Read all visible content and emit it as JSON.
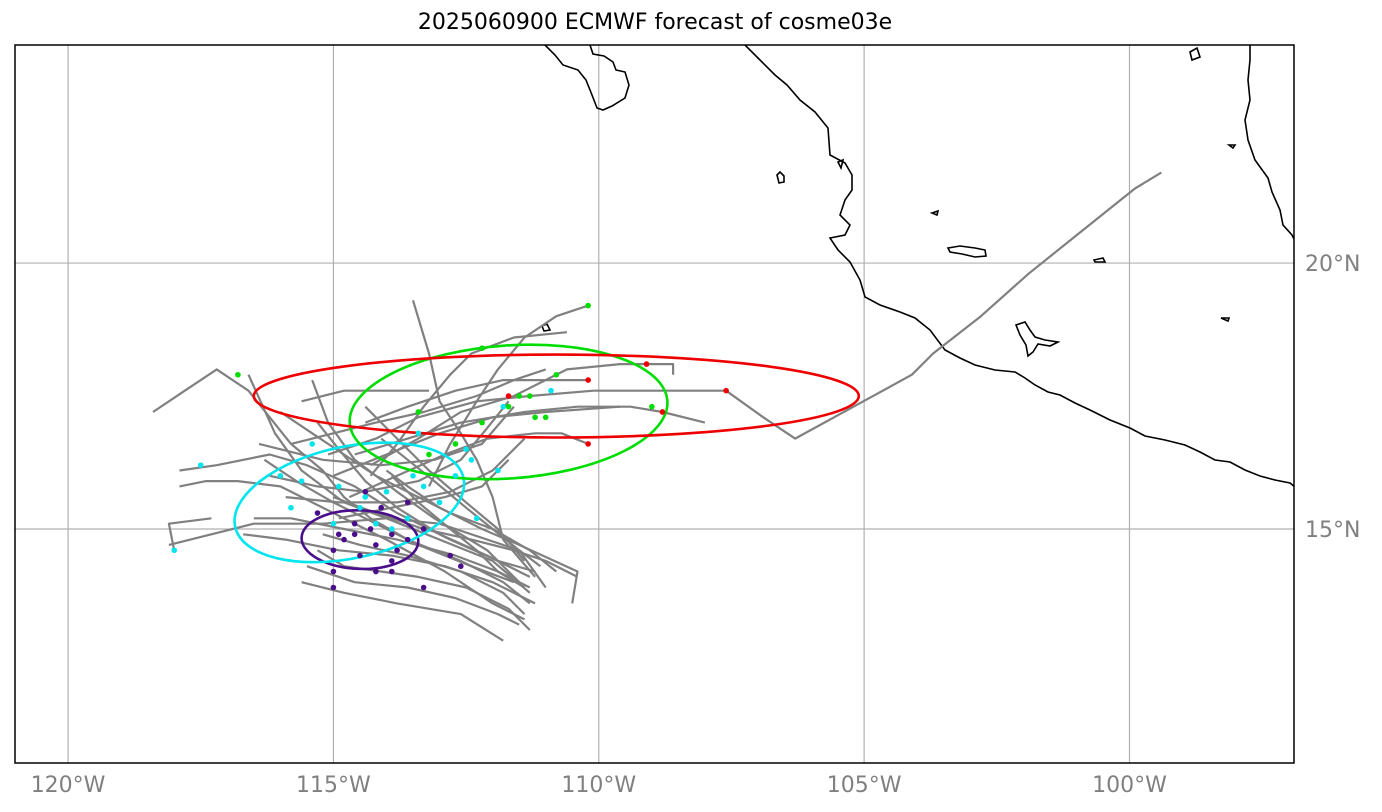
{
  "title": "2025060900 ECMWF forecast of cosme03e",
  "map": {
    "extent": {
      "lon_min": -121,
      "lon_max": -96.9,
      "lat_min": 10.6,
      "lat_max": 24.1
    },
    "projection": "PlateCarree",
    "gridlines": true,
    "colors": {
      "grid": "#b0b0b0",
      "coast": "#000000",
      "track": "#808080",
      "tick": "#808080"
    }
  },
  "axes": {
    "x_ticks": [
      {
        "lon": -120,
        "label": "120°W"
      },
      {
        "lon": -115,
        "label": "115°W"
      },
      {
        "lon": -110,
        "label": "110°W"
      },
      {
        "lon": -105,
        "label": "105°W"
      },
      {
        "lon": -100,
        "label": "100°W"
      }
    ],
    "y_ticks": [
      {
        "lat": 15,
        "label": "15°N"
      },
      {
        "lat": 20,
        "label": "20°N"
      }
    ]
  },
  "ellipses": [
    {
      "name": "purple",
      "color": "#4b0e8a",
      "center": [
        -114.5,
        14.8
      ],
      "semi_axes": [
        1.1,
        0.55
      ],
      "angle": -2
    },
    {
      "name": "cyan",
      "color": "#00e5ee",
      "center": [
        -114.7,
        15.5
      ],
      "semi_axes": [
        2.2,
        1.05
      ],
      "angle": 12
    },
    {
      "name": "green",
      "color": "#00dd00",
      "center": [
        -111.7,
        17.2
      ],
      "semi_axes": [
        3.0,
        1.25
      ],
      "angle": 4
    },
    {
      "name": "red",
      "color": "#ee0000",
      "center": [
        -110.8,
        17.5
      ],
      "semi_axes": [
        5.7,
        0.78
      ],
      "angle": 0
    }
  ],
  "points": {
    "purple": [
      [
        -115,
        14.2
      ],
      [
        -115,
        14.6
      ],
      [
        -114.8,
        14.8
      ],
      [
        -114.5,
        14.5
      ],
      [
        -114.2,
        14.7
      ],
      [
        -113.9,
        14.4
      ],
      [
        -113.8,
        14.6
      ],
      [
        -113.6,
        14.8
      ],
      [
        -114.3,
        15
      ],
      [
        -114.6,
        15.1
      ],
      [
        -115.3,
        15.3
      ],
      [
        -114.1,
        15.4
      ],
      [
        -113.6,
        15.5
      ],
      [
        -113.3,
        15
      ],
      [
        -112.8,
        14.5
      ],
      [
        -112.6,
        14.3
      ],
      [
        -113.3,
        13.9
      ],
      [
        -115,
        13.9
      ],
      [
        -114.2,
        14.2
      ],
      [
        -113.9,
        14.9
      ],
      [
        -114.9,
        14.9
      ],
      [
        -114.4,
        15.7
      ],
      [
        -113.9,
        14.2
      ],
      [
        -114.6,
        14.9
      ]
    ],
    "cyan": [
      [
        -118,
        14.6
      ],
      [
        -117.5,
        16.2
      ],
      [
        -116,
        16
      ],
      [
        -115.4,
        16.6
      ],
      [
        -115.6,
        15.9
      ],
      [
        -114.9,
        15.8
      ],
      [
        -114.4,
        15.6
      ],
      [
        -114,
        15.7
      ],
      [
        -113.5,
        16
      ],
      [
        -113.3,
        15.8
      ],
      [
        -112.7,
        16
      ],
      [
        -112.4,
        16.3
      ],
      [
        -112.3,
        15.2
      ],
      [
        -113,
        15.5
      ],
      [
        -114.5,
        15.4
      ],
      [
        -115,
        15.1
      ],
      [
        -114.2,
        15.1
      ],
      [
        -113.9,
        15
      ],
      [
        -113.6,
        15.2
      ],
      [
        -115.8,
        15.4
      ],
      [
        -111.9,
        16.1
      ],
      [
        -113.4,
        16.8
      ],
      [
        -112.5,
        16.5
      ],
      [
        -111.8,
        17.3
      ],
      [
        -110.9,
        17.6
      ]
    ],
    "green": [
      [
        -116.8,
        17.9
      ],
      [
        -113.4,
        17.2
      ],
      [
        -112.2,
        18.4
      ],
      [
        -110.8,
        17.9
      ],
      [
        -110.2,
        19.2
      ],
      [
        -111.5,
        17.5
      ],
      [
        -111.7,
        17.3
      ],
      [
        -111.3,
        17.5
      ],
      [
        -111,
        17.1
      ],
      [
        -111.2,
        17.1
      ],
      [
        -109.0,
        17.3
      ],
      [
        -112.2,
        17.0
      ],
      [
        -113.2,
        16.4
      ],
      [
        -112.7,
        16.6
      ]
    ],
    "red": [
      [
        -111.7,
        17.5
      ],
      [
        -110.2,
        17.8
      ],
      [
        -109.1,
        18.1
      ],
      [
        -108.8,
        17.2
      ],
      [
        -107.6,
        17.6
      ],
      [
        -110.2,
        16.6
      ]
    ]
  },
  "tracks": [
    [
      [
        -118.4,
        17.2
      ],
      [
        -117.8,
        17.6
      ],
      [
        -117.2,
        18.0
      ],
      [
        -116.9,
        17.8
      ],
      [
        -116.6,
        17.6
      ],
      [
        -116.2,
        17.1
      ],
      [
        -115.8,
        16.6
      ],
      [
        -115.2,
        16.1
      ],
      [
        -114.8,
        15.6
      ],
      [
        -114.3,
        15.2
      ],
      [
        -113.6,
        14.8
      ],
      [
        -112.6,
        14.4
      ],
      [
        -111.8,
        14.0
      ],
      [
        -111.3,
        13.6
      ]
    ],
    [
      [
        -117.3,
        15.2
      ],
      [
        -118.1,
        15.1
      ],
      [
        -118,
        14.6
      ]
    ],
    [
      [
        -118.1,
        14.7
      ],
      [
        -116.5,
        15.1
      ],
      [
        -115.2,
        15.1
      ],
      [
        -114,
        15.2
      ],
      [
        -113,
        15.1
      ],
      [
        -111.5,
        14.6
      ],
      [
        -111,
        13.9
      ]
    ],
    [
      [
        -116.6,
        17.9
      ],
      [
        -116.1,
        16.8
      ],
      [
        -115.6,
        16.1
      ],
      [
        -114.8,
        15.5
      ],
      [
        -114,
        15.2
      ],
      [
        -113,
        14.8
      ],
      [
        -112,
        14.4
      ],
      [
        -111.3,
        13.8
      ]
    ],
    [
      [
        -115.4,
        17.8
      ],
      [
        -115.1,
        17.0
      ],
      [
        -114.6,
        16.3
      ],
      [
        -113.8,
        15.7
      ],
      [
        -113.1,
        15.2
      ],
      [
        -112.1,
        14.6
      ],
      [
        -111.5,
        14.0
      ]
    ],
    [
      [
        -117.9,
        15.8
      ],
      [
        -117.4,
        15.9
      ],
      [
        -116.8,
        15.9
      ],
      [
        -116,
        15.8
      ],
      [
        -115,
        15.3
      ],
      [
        -114,
        14.8
      ],
      [
        -112.9,
        14.2
      ],
      [
        -112,
        13.6
      ],
      [
        -111.4,
        13.3
      ]
    ],
    [
      [
        -117.9,
        16.1
      ],
      [
        -117.2,
        16.2
      ],
      [
        -116.2,
        16.4
      ],
      [
        -115.5,
        16.2
      ],
      [
        -114.6,
        15.8
      ],
      [
        -113.8,
        15.3
      ],
      [
        -112.8,
        14.8
      ],
      [
        -111.9,
        14.4
      ],
      [
        -111.2,
        14.2
      ]
    ],
    [
      [
        -114,
        16.1
      ],
      [
        -113.6,
        15.8
      ],
      [
        -113,
        15.4
      ],
      [
        -112.2,
        15
      ],
      [
        -111.5,
        14.7
      ],
      [
        -110.4,
        14.2
      ],
      [
        -110.5,
        13.6
      ]
    ],
    [
      [
        -115.3,
        14.6
      ],
      [
        -114.8,
        14.3
      ],
      [
        -114.1,
        14.2
      ],
      [
        -113.4,
        14.1
      ],
      [
        -112.5,
        13.9
      ],
      [
        -111.7,
        13.5
      ],
      [
        -111.3,
        13.1
      ]
    ],
    [
      [
        -115.5,
        14.3
      ],
      [
        -114.6,
        14
      ],
      [
        -113.6,
        13.9
      ],
      [
        -112.7,
        13.7
      ],
      [
        -111.9,
        13.4
      ],
      [
        -111.5,
        13.2
      ]
    ],
    [
      [
        -115.6,
        14.0
      ],
      [
        -114.8,
        13.8
      ],
      [
        -113.8,
        13.6
      ],
      [
        -112.6,
        13.4
      ],
      [
        -111.8,
        12.9
      ]
    ],
    [
      [
        -113.5,
        19.3
      ],
      [
        -113.2,
        18.3
      ],
      [
        -113,
        17.4
      ],
      [
        -112.6,
        16.8
      ],
      [
        -112.3,
        16.3
      ],
      [
        -112,
        15.6
      ],
      [
        -111.8,
        14.8
      ],
      [
        -111.2,
        14.1
      ]
    ],
    [
      [
        -115.6,
        17.4
      ],
      [
        -114.8,
        17.6
      ],
      [
        -113.7,
        17.6
      ],
      [
        -113.2,
        17.6
      ]
    ],
    [
      [
        -114.4,
        17.0
      ],
      [
        -113.6,
        17.3
      ],
      [
        -112.7,
        17.6
      ],
      [
        -111.8,
        17.8
      ],
      [
        -110.8,
        17.8
      ],
      [
        -110.2,
        17.8
      ]
    ],
    [
      [
        -114.3,
        16.2
      ],
      [
        -113.4,
        16.7
      ],
      [
        -112.6,
        17.2
      ],
      [
        -111.6,
        17.5
      ],
      [
        -110.6,
        18.0
      ],
      [
        -109.6,
        18.1
      ],
      [
        -108.6,
        18.1
      ],
      [
        -108.6,
        17.9
      ]
    ],
    [
      [
        -115.1,
        16.4
      ],
      [
        -114.2,
        16.7
      ],
      [
        -113.4,
        17.1
      ],
      [
        -112.3,
        17.4
      ],
      [
        -111.3,
        17.5
      ],
      [
        -110.1,
        17.6
      ],
      [
        -109.1,
        17.6
      ],
      [
        -107.6,
        17.6
      ],
      [
        -106.9,
        17.1
      ],
      [
        -106.3,
        16.7
      ],
      [
        -105.2,
        17.3
      ],
      [
        -104.1,
        17.9
      ],
      [
        -103.7,
        18.3
      ],
      [
        -102.8,
        19.0
      ],
      [
        -101.9,
        19.8
      ],
      [
        -100.9,
        20.6
      ],
      [
        -99.9,
        21.4
      ],
      [
        -99.4,
        21.7
      ]
    ],
    [
      [
        -114.6,
        16.4
      ],
      [
        -113.6,
        16.7
      ],
      [
        -112.6,
        17.0
      ],
      [
        -111.4,
        17.2
      ],
      [
        -110.4,
        17.3
      ],
      [
        -109.4,
        17.3
      ],
      [
        -108.8,
        17.2
      ],
      [
        -108.0,
        17.0
      ]
    ],
    [
      [
        -115.0,
        16.0
      ],
      [
        -114.0,
        16.4
      ],
      [
        -113.0,
        16.8
      ],
      [
        -112.0,
        17.1
      ],
      [
        -111.0,
        17.2
      ],
      [
        -109.6,
        17.3
      ]
    ],
    [
      [
        -114.7,
        15.6
      ],
      [
        -113.8,
        16.0
      ],
      [
        -112.9,
        16.4
      ],
      [
        -112.1,
        16.7
      ],
      [
        -111.2,
        16.8
      ],
      [
        -110.7,
        16.8
      ],
      [
        -110.2,
        16.6
      ]
    ],
    [
      [
        -115.8,
        16.6
      ],
      [
        -115.0,
        16.8
      ],
      [
        -114.2,
        17.0
      ],
      [
        -113.3,
        17.2
      ],
      [
        -112.3,
        17.5
      ],
      [
        -111.6,
        17.8
      ],
      [
        -111.0,
        18.0
      ]
    ],
    [
      [
        -114.3,
        16.0
      ],
      [
        -113.8,
        16.6
      ],
      [
        -113.3,
        17.3
      ],
      [
        -112.8,
        17.9
      ],
      [
        -112.4,
        18.3
      ],
      [
        -111.6,
        18.6
      ],
      [
        -110.6,
        18.7
      ]
    ],
    [
      [
        -113.2,
        15.8
      ],
      [
        -112.8,
        16.6
      ],
      [
        -112.3,
        17.4
      ],
      [
        -111.9,
        18.0
      ],
      [
        -111.4,
        18.6
      ],
      [
        -110.8,
        19.0
      ],
      [
        -110.2,
        19.2
      ]
    ],
    [
      [
        -116.4,
        16.6
      ],
      [
        -115.2,
        16.3
      ],
      [
        -114.1,
        16.2
      ],
      [
        -113.1,
        16.3
      ],
      [
        -112.2,
        16.6
      ],
      [
        -111.6,
        17.3
      ]
    ],
    [
      [
        -115.9,
        15.6
      ],
      [
        -114.9,
        15.5
      ],
      [
        -113.8,
        15.5
      ],
      [
        -112.8,
        15.7
      ],
      [
        -112.0,
        16.1
      ],
      [
        -111.4,
        16.7
      ]
    ],
    [
      [
        -114.9,
        15.2
      ],
      [
        -113.9,
        15.4
      ],
      [
        -112.9,
        15.6
      ],
      [
        -112.2,
        15.8
      ],
      [
        -111.7,
        16.3
      ]
    ],
    [
      [
        -116.2,
        16.0
      ],
      [
        -115.3,
        15.8
      ],
      [
        -114.4,
        15.7
      ],
      [
        -113.4,
        15.9
      ],
      [
        -112.6,
        16.3
      ],
      [
        -112.1,
        16.9
      ],
      [
        -111.7,
        17.4
      ]
    ],
    [
      [
        -116.0,
        17.2
      ],
      [
        -115.4,
        16.8
      ],
      [
        -114.8,
        16.4
      ],
      [
        -114.2,
        16.0
      ],
      [
        -113.6,
        15.7
      ],
      [
        -112.8,
        15.3
      ],
      [
        -112.0,
        15.0
      ],
      [
        -111.3,
        14.6
      ],
      [
        -110.8,
        14.2
      ]
    ],
    [
      [
        -116.5,
        15.2
      ],
      [
        -115.8,
        15.2
      ],
      [
        -114.8,
        15.0
      ],
      [
        -113.8,
        14.8
      ],
      [
        -112.7,
        14.5
      ],
      [
        -111.9,
        14.2
      ],
      [
        -111.3,
        13.9
      ]
    ],
    [
      [
        -116.7,
        14.9
      ],
      [
        -115.9,
        14.8
      ],
      [
        -114.9,
        14.6
      ],
      [
        -113.9,
        14.5
      ],
      [
        -112.9,
        14.3
      ],
      [
        -112.0,
        14.0
      ],
      [
        -111.2,
        13.6
      ]
    ],
    [
      [
        -115.2,
        14.9
      ],
      [
        -114.5,
        14.7
      ],
      [
        -113.6,
        14.5
      ],
      [
        -112.6,
        14.2
      ],
      [
        -111.8,
        13.8
      ],
      [
        -111.4,
        13.4
      ]
    ],
    [
      [
        -115.0,
        15.6
      ],
      [
        -114.2,
        15.3
      ],
      [
        -113.3,
        15.0
      ],
      [
        -112.4,
        14.8
      ],
      [
        -111.6,
        14.6
      ],
      [
        -111.0,
        14.4
      ],
      [
        -110.4,
        14.1
      ]
    ],
    [
      [
        -114.1,
        16.7
      ],
      [
        -113.6,
        16.3
      ],
      [
        -113.1,
        15.9
      ],
      [
        -112.5,
        15.4
      ],
      [
        -112.0,
        15.0
      ],
      [
        -111.5,
        14.6
      ],
      [
        -111.1,
        14.3
      ]
    ],
    [
      [
        -113.9,
        16.0
      ],
      [
        -113.4,
        15.5
      ],
      [
        -112.8,
        15.0
      ],
      [
        -112.3,
        14.6
      ],
      [
        -111.9,
        14.2
      ],
      [
        -111.4,
        13.9
      ]
    ],
    [
      [
        -114.4,
        17.3
      ],
      [
        -113.8,
        16.7
      ],
      [
        -113.2,
        16.1
      ],
      [
        -112.5,
        15.5
      ],
      [
        -111.9,
        15.0
      ],
      [
        -111.4,
        14.4
      ]
    ],
    [
      [
        -115.3,
        17.0
      ],
      [
        -114.9,
        16.5
      ],
      [
        -114.4,
        15.9
      ],
      [
        -113.8,
        15.4
      ],
      [
        -113.0,
        14.9
      ],
      [
        -112.1,
        14.5
      ],
      [
        -111.3,
        14.1
      ]
    ],
    [
      [
        -116.3,
        16.3
      ],
      [
        -115.7,
        15.9
      ],
      [
        -115.0,
        15.5
      ],
      [
        -114.2,
        15.1
      ],
      [
        -113.4,
        14.7
      ],
      [
        -112.4,
        14.3
      ],
      [
        -111.6,
        14.0
      ]
    ]
  ]
}
